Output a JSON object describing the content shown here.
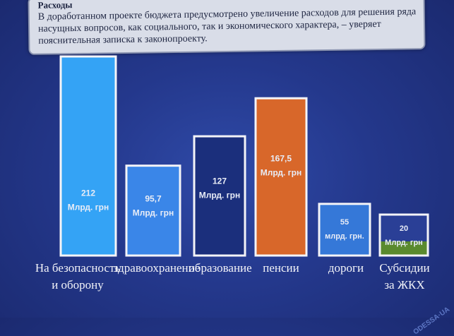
{
  "note": {
    "title": "Расходы",
    "text": "В доработанном проекте бюджета предусмотрено увеличение расходов для решения ряда насущных вопросов, как социального, так и экономического характера, – уверяет пояснительная записка к законопроекту."
  },
  "chart_data": {
    "type": "bar",
    "categories": [
      "На безопасность и оборону",
      "здравоохранение",
      "образование",
      "пенсии",
      "дороги",
      "Субсидии за ЖКХ"
    ],
    "values": [
      212,
      95.7,
      127,
      167.5,
      55,
      20
    ],
    "value_labels": [
      "212",
      "95,7",
      "127",
      "167,5",
      "55",
      "20"
    ],
    "unit_labels": [
      "Млрд. грн",
      "Млрд. грн",
      "Млрд. грн",
      "Млрд. грн",
      "млрд. грн.",
      "Млрд. грн"
    ],
    "colors": [
      "#34a3f5",
      "#3a86e8",
      "#1b2f7c",
      "#d8672a",
      "#3578d8",
      "#2a3f96"
    ]
  }
}
